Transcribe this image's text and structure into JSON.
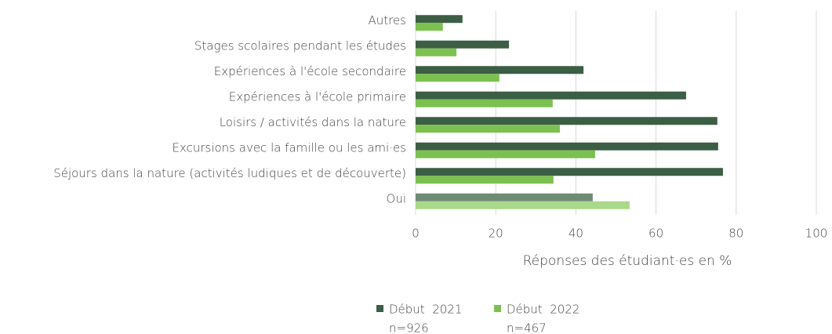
{
  "chart_data": {
    "type": "hbar",
    "categories": [
      "Autres",
      "Stages scolaires pendant les études",
      "Expériences à l'école secondaire",
      "Expériences à l'école primaire",
      "Loisirs / activités dans la nature",
      "Excursions avec la famille ou les ami·es",
      "Séjours dans la nature (activités ludiques et de découverte)",
      "Oui"
    ],
    "series": [
      {
        "name": "Début  2021",
        "n": "n=926",
        "color": "#3b5e44",
        "colors": [
          "#3b5e44",
          "#3b5e44",
          "#3b5e44",
          "#3b5e44",
          "#3b5e44",
          "#3b5e44",
          "#3b5e44",
          "#6f8a75"
        ],
        "values": [
          11.7,
          23.3,
          41.9,
          67.5,
          75.3,
          75.5,
          76.7,
          44.2
        ]
      },
      {
        "name": "Début  2022",
        "n": "n=467",
        "color": "#7cc14f",
        "colors": [
          "#7cc14f",
          "#7cc14f",
          "#7cc14f",
          "#7cc14f",
          "#7cc14f",
          "#7cc14f",
          "#7cc14f",
          "#a9d98a"
        ],
        "values": [
          6.8,
          10.2,
          20.9,
          34.2,
          36.0,
          44.8,
          34.4,
          53.4
        ]
      }
    ],
    "xlabel": "Réponses des étudiant·es en %",
    "xlim": [
      0,
      100
    ],
    "xticks": [
      0,
      20,
      40,
      60,
      80,
      100
    ],
    "grid": true
  }
}
